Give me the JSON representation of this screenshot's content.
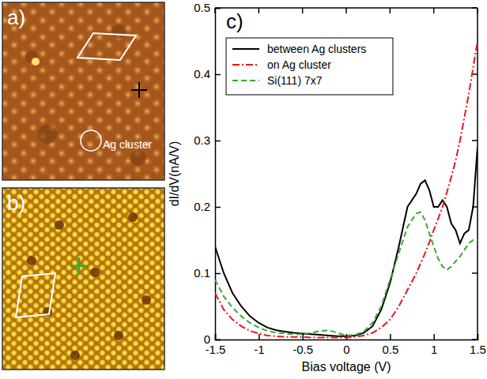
{
  "panels": [
    {
      "panel_label": "a)",
      "annotation": "Ag cluster"
    },
    {
      "panel_label": "b)"
    }
  ],
  "chart_data": {
    "type": "line",
    "panel_label": "c)",
    "xlabel": "Bias voltage (V)",
    "ylabel": "dI/dV(nA/V)",
    "x": [
      -1.5,
      -1.4,
      -1.3,
      -1.2,
      -1.1,
      -1.0,
      -0.9,
      -0.8,
      -0.7,
      -0.6,
      -0.5,
      -0.4,
      -0.3,
      -0.2,
      -0.1,
      0,
      0.1,
      0.2,
      0.3,
      0.4,
      0.5,
      0.6,
      0.7,
      0.8,
      0.85,
      0.9,
      0.95,
      1.0,
      1.05,
      1.1,
      1.15,
      1.2,
      1.25,
      1.3,
      1.35,
      1.4,
      1.45,
      1.5
    ],
    "xlim": [
      -1.5,
      1.5
    ],
    "xticks": [
      -1.5,
      -1,
      -0.5,
      0,
      0.5,
      1,
      1.5
    ],
    "ylim": [
      0,
      0.5
    ],
    "yticks": [
      0,
      0.1,
      0.2,
      0.3,
      0.4,
      0.5
    ],
    "legend": "upper left",
    "series": [
      {
        "name": "between Ag clusters",
        "color": "#000000",
        "line_style": "solid",
        "values": [
          0.14,
          0.1,
          0.07,
          0.05,
          0.035,
          0.025,
          0.018,
          0.014,
          0.012,
          0.01,
          0.009,
          0.008,
          0.007,
          0.006,
          0.005,
          0.005,
          0.006,
          0.01,
          0.02,
          0.045,
          0.085,
          0.14,
          0.2,
          0.22,
          0.235,
          0.24,
          0.225,
          0.2,
          0.2,
          0.21,
          0.2,
          0.175,
          0.165,
          0.145,
          0.16,
          0.165,
          0.2,
          0.29
        ]
      },
      {
        "name": "on Ag cluster",
        "color": "#e8161b",
        "line_style": "dashdot",
        "values": [
          0.07,
          0.045,
          0.03,
          0.02,
          0.013,
          0.009,
          0.006,
          0.005,
          0.004,
          0.004,
          0.004,
          0.003,
          0.003,
          0.003,
          0.003,
          0.003,
          0.004,
          0.006,
          0.01,
          0.018,
          0.03,
          0.05,
          0.075,
          0.1,
          0.115,
          0.13,
          0.147,
          0.165,
          0.182,
          0.2,
          0.222,
          0.245,
          0.27,
          0.3,
          0.335,
          0.37,
          0.41,
          0.45
        ]
      },
      {
        "name": "Si(111) 7x7",
        "color": "#3aa832",
        "line_style": "dashed",
        "values": [
          0.09,
          0.065,
          0.048,
          0.035,
          0.025,
          0.018,
          0.013,
          0.01,
          0.009,
          0.008,
          0.008,
          0.01,
          0.013,
          0.014,
          0.01,
          0.006,
          0.007,
          0.012,
          0.025,
          0.05,
          0.09,
          0.13,
          0.17,
          0.19,
          0.192,
          0.18,
          0.16,
          0.14,
          0.122,
          0.11,
          0.105,
          0.11,
          0.118,
          0.125,
          0.135,
          0.145,
          0.15,
          0.15
        ]
      }
    ]
  }
}
